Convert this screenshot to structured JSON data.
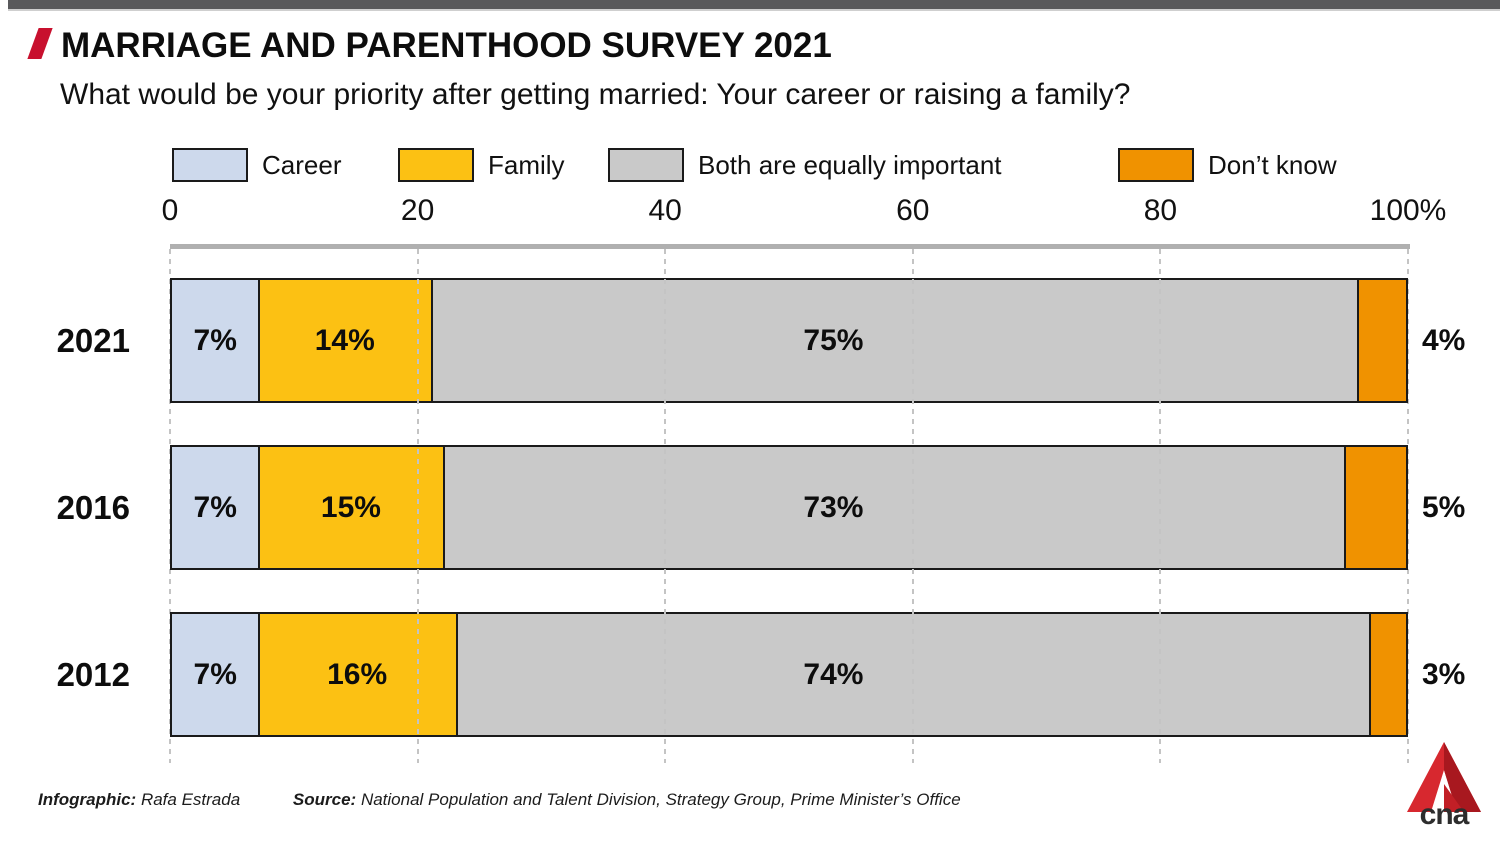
{
  "header": {
    "title": "MARRIAGE AND PARENTHOOD SURVEY 2021",
    "subtitle": "What would be your priority after getting married: Your career or raising a family?"
  },
  "legend": {
    "items": [
      {
        "label": "Career",
        "color": "#cdd9ec"
      },
      {
        "label": "Family",
        "color": "#fcc113"
      },
      {
        "label": "Both are equally important",
        "color": "#c9c9c9"
      },
      {
        "label": "Don’t know",
        "color": "#f09200"
      }
    ]
  },
  "chart_data": {
    "type": "bar",
    "orientation": "horizontal",
    "stacked": true,
    "title": "What would be your priority after getting married: Your career or raising a family?",
    "categories": [
      "2021",
      "2016",
      "2012"
    ],
    "series": [
      {
        "name": "Career",
        "color": "#cdd9ec",
        "values": [
          7,
          7,
          7
        ]
      },
      {
        "name": "Family",
        "color": "#fcc113",
        "values": [
          14,
          15,
          16
        ]
      },
      {
        "name": "Both are equally important",
        "color": "#c9c9c9",
        "values": [
          75,
          73,
          74
        ]
      },
      {
        "name": "Don’t know",
        "color": "#f09200",
        "values": [
          4,
          5,
          3
        ]
      }
    ],
    "x_ticks": [
      {
        "value": 0,
        "label": "0"
      },
      {
        "value": 20,
        "label": "20"
      },
      {
        "value": 40,
        "label": "40"
      },
      {
        "value": 60,
        "label": "60"
      },
      {
        "value": 80,
        "label": "80"
      },
      {
        "value": 100,
        "label": "100%"
      }
    ],
    "xlim": [
      0,
      100
    ],
    "grid": "dashed-vertical",
    "legend_position": "top",
    "value_label_format": "{value}%"
  },
  "footer": {
    "infographic_label": "Infographic:",
    "infographic_value": "Rafa Estrada",
    "source_label": "Source:",
    "source_value": "National Population and Talent Division, Strategy Group, Prime Minister’s Office"
  },
  "logo": {
    "text": "cna"
  },
  "colors": {
    "accent_red": "#c8102e",
    "topbar": "#59595b",
    "bar_border": "#1a1a1a",
    "axis_line": "#b0b0b0",
    "gridline": "#c4c4c4"
  }
}
